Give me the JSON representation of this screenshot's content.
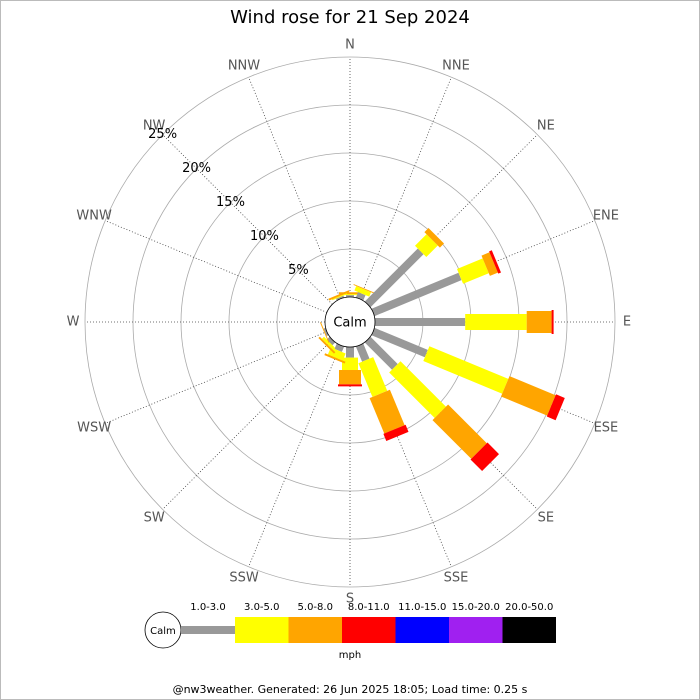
{
  "chart_data": {
    "type": "windrose",
    "title": "Wind rose for 21 Sep 2024",
    "categories": [
      "N",
      "NNE",
      "NE",
      "ENE",
      "E",
      "ESE",
      "SE",
      "SSE",
      "S",
      "SSW",
      "SW",
      "WSW",
      "W",
      "WNW",
      "NW",
      "NNW"
    ],
    "calm_label": "Calm",
    "unit_label": "mph",
    "rlim": [
      0,
      25
    ],
    "rticks": [
      {
        "value": 5,
        "label": "5%"
      },
      {
        "value": 10,
        "label": "10%"
      },
      {
        "value": 15,
        "label": "15%"
      },
      {
        "value": 20,
        "label": "20%"
      },
      {
        "value": 25,
        "label": "25%"
      }
    ],
    "series": [
      {
        "name": "1.0-3.0",
        "color": "#999999",
        "values": [
          0.2,
          0.6,
          7.8,
          9.8,
          9.4,
          6.0,
          4.0,
          1.7,
          1.1,
          0.6,
          0.4,
          0.2,
          0,
          0,
          0,
          0.2
        ]
      },
      {
        "name": "3.0-5.0",
        "color": "#ffff00",
        "values": [
          0.1,
          0.5,
          1.7,
          2.9,
          6.4,
          8.9,
          6.7,
          3.8,
          1.3,
          0.8,
          0.3,
          0,
          0,
          0,
          0,
          0.1
        ]
      },
      {
        "name": "5.0-8.0",
        "color": "#ffa500",
        "values": [
          0.2,
          0.1,
          0.6,
          0.9,
          2.6,
          5.2,
          5.7,
          4.0,
          1.5,
          0.2,
          0.2,
          0.1,
          0,
          0,
          0,
          0.2
        ]
      },
      {
        "name": "8.0-11.0",
        "color": "#ff0000",
        "values": [
          0,
          0,
          0,
          0.3,
          0.2,
          1.0,
          1.7,
          0.8,
          0.2,
          0,
          0,
          0,
          0,
          0,
          0,
          0
        ]
      },
      {
        "name": "11.0-15.0",
        "color": "#0000ff",
        "values": [
          0,
          0,
          0,
          0,
          0,
          0,
          0,
          0,
          0,
          0,
          0,
          0,
          0,
          0,
          0,
          0
        ]
      },
      {
        "name": "15.0-20.0",
        "color": "#a020f0",
        "values": [
          0,
          0,
          0,
          0,
          0,
          0,
          0,
          0,
          0,
          0,
          0,
          0,
          0,
          0,
          0,
          0
        ]
      },
      {
        "name": "20.0-50.0",
        "color": "#000000",
        "values": [
          0,
          0,
          0,
          0,
          0,
          0,
          0,
          0,
          0,
          0,
          0,
          0,
          0,
          0,
          0,
          0
        ]
      }
    ],
    "footer": "@nw3weather. Generated: 26 Jun 2025 18:05; Load time: 0.25 s"
  }
}
